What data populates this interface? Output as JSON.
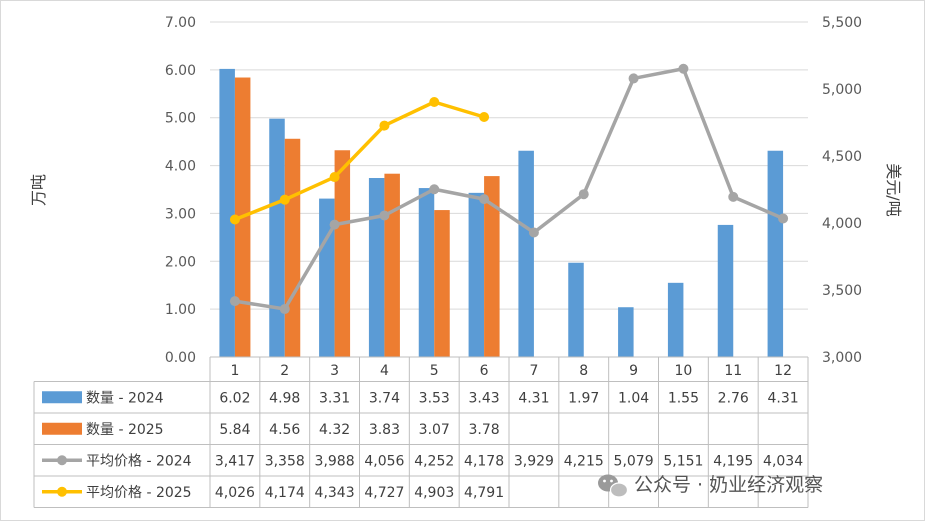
{
  "chart_data": {
    "type": "bar",
    "categories": [
      "1",
      "2",
      "3",
      "4",
      "5",
      "6",
      "7",
      "8",
      "9",
      "10",
      "11",
      "12"
    ],
    "y_left": {
      "label": "万吨",
      "range": [
        0,
        7
      ],
      "ticks": [
        "0.00",
        "1.00",
        "2.00",
        "3.00",
        "4.00",
        "5.00",
        "6.00",
        "7.00"
      ]
    },
    "y_right": {
      "label": "美元/吨",
      "range": [
        3000,
        5500
      ],
      "ticks": [
        "3,000",
        "3,500",
        "4,000",
        "4,500",
        "5,000",
        "5,500"
      ]
    },
    "grid": true,
    "legend": "data-table",
    "series": [
      {
        "name": "数量 - 2024",
        "type": "bar",
        "axis": "left",
        "color": "#5B9BD5",
        "values": [
          6.02,
          4.98,
          3.31,
          3.74,
          3.53,
          3.43,
          4.31,
          1.97,
          1.04,
          1.55,
          2.76,
          4.31
        ],
        "labels": [
          "6.02",
          "4.98",
          "3.31",
          "3.74",
          "3.53",
          "3.43",
          "4.31",
          "1.97",
          "1.04",
          "1.55",
          "2.76",
          "4.31"
        ]
      },
      {
        "name": "数量 - 2025",
        "type": "bar",
        "axis": "left",
        "color": "#ED7D31",
        "values": [
          5.84,
          4.56,
          4.32,
          3.83,
          3.07,
          3.78,
          null,
          null,
          null,
          null,
          null,
          null
        ],
        "labels": [
          "5.84",
          "4.56",
          "4.32",
          "3.83",
          "3.07",
          "3.78",
          "",
          "",
          "",
          "",
          "",
          ""
        ]
      },
      {
        "name": "平均价格 - 2024",
        "type": "line",
        "axis": "right",
        "color": "#A5A5A5",
        "values": [
          3417,
          3358,
          3988,
          4056,
          4252,
          4178,
          3929,
          4215,
          5079,
          5151,
          4195,
          4034
        ],
        "labels": [
          "3,417",
          "3,358",
          "3,988",
          "4,056",
          "4,252",
          "4,178",
          "3,929",
          "4,215",
          "5,079",
          "5,151",
          "4,195",
          "4,034"
        ]
      },
      {
        "name": "平均价格 - 2025",
        "type": "line",
        "axis": "right",
        "color": "#FFC000",
        "values": [
          4026,
          4174,
          4343,
          4727,
          4903,
          4791,
          null,
          null,
          null,
          null,
          null,
          null
        ],
        "labels": [
          "4,026",
          "4,174",
          "4,343",
          "4,727",
          "4,903",
          "4,791",
          "",
          "",
          "",
          "",
          "",
          ""
        ]
      }
    ]
  },
  "watermark": {
    "text": "公众号 · 奶业经济观察",
    "icon": "wechat-icon"
  },
  "colors": {
    "grid": "#D9D9D9",
    "table_border": "#BFBFBF",
    "text": "#595959"
  }
}
